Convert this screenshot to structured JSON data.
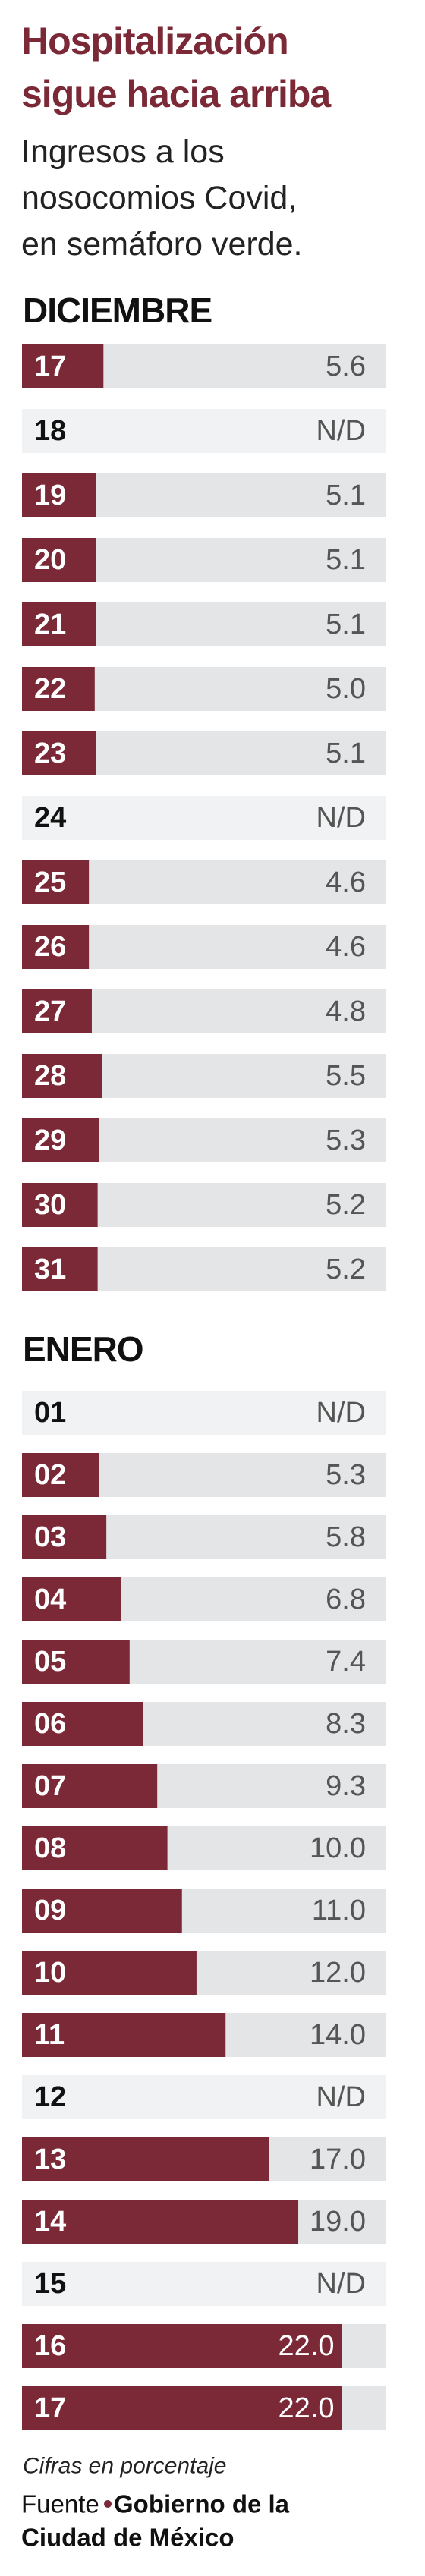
{
  "header": {
    "title": [
      "Hospitalización",
      "sigue hacia arriba"
    ],
    "subtitle": [
      "Ingresos a los",
      "nosocomios Covid,",
      "en semáforo verde."
    ]
  },
  "chart_data": [
    {
      "type": "bar",
      "title": "DICIEMBRE",
      "color": "#7b2837",
      "categories": [
        "17",
        "18",
        "19",
        "20",
        "21",
        "22",
        "23",
        "24",
        "25",
        "26",
        "27",
        "28",
        "29",
        "30",
        "31"
      ],
      "values": [
        5.6,
        null,
        5.1,
        5.1,
        5.1,
        5.0,
        5.1,
        null,
        4.6,
        4.6,
        4.8,
        5.5,
        5.3,
        5.2,
        5.2
      ],
      "value_labels": [
        "5.6",
        "N/D",
        "5.1",
        "5.1",
        "5.1",
        "5.0",
        "5.1",
        "N/D",
        "4.6",
        "4.6",
        "4.8",
        "5.5",
        "5.3",
        "5.2",
        "5.2"
      ],
      "xlim": [
        0,
        25
      ]
    },
    {
      "type": "bar",
      "title": "ENERO",
      "color": "#7b2837",
      "categories": [
        "01",
        "02",
        "03",
        "04",
        "05",
        "06",
        "07",
        "08",
        "09",
        "10",
        "11",
        "12",
        "13",
        "14",
        "15",
        "16",
        "17"
      ],
      "values": [
        null,
        5.3,
        5.8,
        6.8,
        7.4,
        8.3,
        9.3,
        10.0,
        11.0,
        12.0,
        14.0,
        null,
        17.0,
        19.0,
        null,
        22.0,
        22.0
      ],
      "value_labels": [
        "N/D",
        "5.3",
        "5.8",
        "6.8",
        "7.4",
        "8.3",
        "9.3",
        "10.0",
        "11.0",
        "12.0",
        "14.0",
        "N/D",
        "17.0",
        "19.0",
        "N/D",
        "22.0",
        "22.0"
      ],
      "xlim": [
        0,
        25
      ]
    }
  ],
  "footer": {
    "note": "Cifras en porcentaje",
    "source_label": "Fuente",
    "source": [
      "Gobierno de la",
      "Ciudad de México"
    ]
  }
}
